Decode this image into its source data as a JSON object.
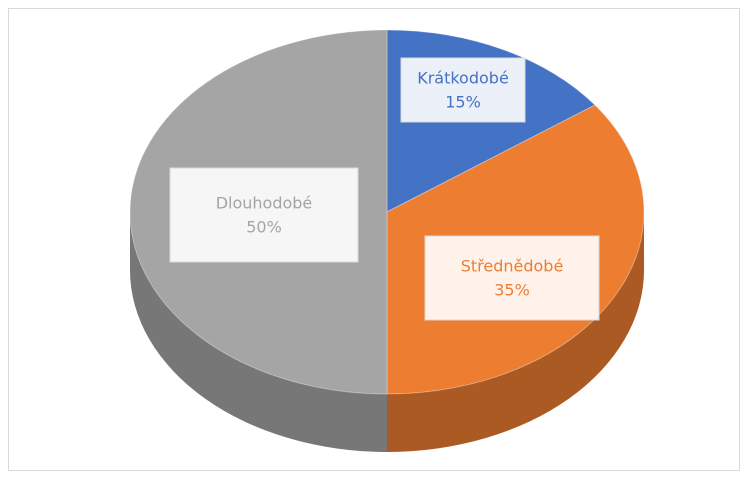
{
  "chart_data": {
    "type": "pie",
    "categories": [
      "Krátkodobé",
      "Střednědobé",
      "Dlouhodobé"
    ],
    "values": [
      15,
      35,
      50
    ],
    "value_labels": [
      "15%",
      "35%",
      "50%"
    ],
    "colors": [
      "#4472c4",
      "#ed7d31",
      "#a5a5a5"
    ]
  }
}
